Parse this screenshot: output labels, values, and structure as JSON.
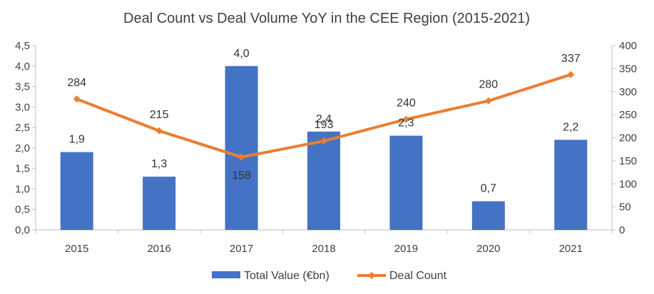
{
  "chart_data": {
    "type": "bar",
    "title": "Deal Count vs Deal Volume YoY in the CEE Region (2015-2021)",
    "categories": [
      "2015",
      "2016",
      "2017",
      "2018",
      "2019",
      "2020",
      "2021"
    ],
    "series": [
      {
        "name": "Total Value (€bn)",
        "type": "bar",
        "axis": "left",
        "values": [
          1.9,
          1.3,
          4.0,
          2.4,
          2.3,
          0.7,
          2.2
        ],
        "value_labels": [
          "1,9",
          "1,3",
          "4,0",
          "2,4",
          "2,3",
          "0,7",
          "2,2"
        ],
        "color": "#4472C4"
      },
      {
        "name": "Deal Count",
        "type": "line",
        "axis": "right",
        "values": [
          284,
          215,
          158,
          193,
          240,
          280,
          337
        ],
        "value_labels": [
          "284",
          "215",
          "158",
          "193",
          "240",
          "280",
          "337"
        ],
        "color": "#ED7D31"
      }
    ],
    "y_left": {
      "ylim": [
        0,
        4.5
      ],
      "ticks": [
        0,
        0.5,
        1.0,
        1.5,
        2.0,
        2.5,
        3.0,
        3.5,
        4.0,
        4.5
      ],
      "tick_labels": [
        "0,0",
        "0,5",
        "1,0",
        "1,5",
        "2,0",
        "2,5",
        "3,0",
        "3,5",
        "4,0",
        "4,5"
      ]
    },
    "y_right": {
      "ylim": [
        0,
        400
      ],
      "ticks": [
        0,
        50,
        100,
        150,
        200,
        250,
        300,
        350,
        400
      ],
      "tick_labels": [
        "0",
        "50",
        "100",
        "150",
        "200",
        "250",
        "300",
        "350",
        "400"
      ]
    },
    "grid": false,
    "legend": "bottom-center",
    "axis_color": "#BFBFBF"
  }
}
